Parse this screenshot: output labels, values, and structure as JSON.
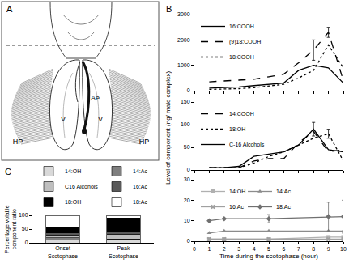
{
  "diagram": {
    "panel_label": "A",
    "labels": {
      "left_hair_pencil": "HP",
      "left_valva": "V",
      "aedeagus": "Ae",
      "right_valva": "V",
      "right_hair_pencil": "HP"
    }
  },
  "chart_data": [
    {
      "type": "line",
      "title": "B",
      "xlim": [
        0,
        10
      ],
      "xticks": [
        0,
        1,
        2,
        3,
        4,
        5,
        6,
        7,
        8,
        9,
        10
      ],
      "ylim": [
        0,
        3000
      ],
      "yticks": [
        0,
        1000,
        2000,
        3000
      ],
      "tick_labels": "y",
      "series": [
        {
          "name": "16:COOH",
          "color": "#000000",
          "line_style": "solid",
          "x": [
            1,
            2,
            3,
            4,
            5,
            6,
            7,
            8,
            9,
            10
          ],
          "values": [
            100,
            120,
            150,
            200,
            250,
            300,
            800,
            1000,
            900,
            300
          ]
        },
        {
          "name": "(9)18:COOH",
          "color": "#000000",
          "line_style": "dash",
          "x": [
            1,
            2,
            3,
            4,
            5,
            6,
            7,
            8,
            9,
            10
          ],
          "values": [
            350,
            380,
            400,
            450,
            550,
            650,
            1100,
            1600,
            2300,
            400
          ],
          "errors": [
            null,
            null,
            null,
            null,
            null,
            null,
            null,
            400,
            200,
            null
          ]
        },
        {
          "name": "18:COOH",
          "color": "#000000",
          "line_style": "dot",
          "x": [
            1,
            2,
            3,
            4,
            5,
            6,
            7,
            8,
            9,
            10
          ],
          "values": [
            50,
            60,
            80,
            120,
            180,
            250,
            500,
            800,
            1800,
            900
          ]
        }
      ]
    },
    {
      "type": "line",
      "ylabel": "Level of component (ng/ male complex)",
      "xlim": [
        0,
        10
      ],
      "xticks": [
        0,
        1,
        2,
        3,
        4,
        5,
        6,
        7,
        8,
        9,
        10
      ],
      "ylim": [
        0,
        150
      ],
      "yticks": [
        0,
        50,
        100,
        150
      ],
      "tick_labels": "y",
      "series": [
        {
          "name": "14:COOH",
          "color": "#000000",
          "line_style": "dash",
          "x": [
            1,
            2,
            3,
            4,
            5,
            6,
            7,
            8,
            9,
            10
          ],
          "values": [
            5,
            5,
            5,
            20,
            25,
            25,
            60,
            85,
            40,
            45
          ]
        },
        {
          "name": "18:OH",
          "color": "#000000",
          "line_style": "dot",
          "x": [
            1,
            2,
            3,
            4,
            5,
            6,
            7,
            8,
            9,
            10
          ],
          "values": [
            5,
            5,
            5,
            15,
            30,
            40,
            55,
            70,
            80,
            20
          ],
          "errors": [
            null,
            null,
            null,
            null,
            null,
            null,
            null,
            null,
            10,
            null
          ]
        },
        {
          "name": "C-16 Alcohols",
          "color": "#000000",
          "line_style": "solid",
          "x": [
            1,
            2,
            3,
            4,
            5,
            6,
            7,
            8,
            9,
            10
          ],
          "values": [
            5,
            5,
            8,
            30,
            35,
            40,
            55,
            90,
            45,
            40
          ],
          "errors": [
            null,
            null,
            null,
            null,
            null,
            null,
            null,
            15,
            null,
            null
          ]
        }
      ]
    },
    {
      "type": "line",
      "xlabel": "Time during the scotophase (hour)",
      "xlim": [
        0,
        10
      ],
      "xticks": [
        0,
        1,
        2,
        3,
        4,
        5,
        6,
        7,
        8,
        9,
        10
      ],
      "ylim": [
        0,
        30
      ],
      "yticks": [
        0,
        10,
        20,
        30
      ],
      "series": [
        {
          "name": "14:OH",
          "color": "#b0b0b0",
          "line_style": "solid",
          "marker": "square",
          "x": [
            1,
            2,
            5,
            9,
            10
          ],
          "values": [
            1,
            1,
            1,
            2,
            2
          ]
        },
        {
          "name": "14:Ac",
          "color": "#8c8c8c",
          "line_style": "solid",
          "marker": "triangle",
          "x": [
            1,
            2,
            5,
            9,
            10
          ],
          "values": [
            4,
            5,
            5,
            5,
            5
          ]
        },
        {
          "name": "16:Ac",
          "color": "#a0a0a0",
          "line_style": "solid",
          "marker": "x",
          "x": [
            1,
            2,
            5,
            9,
            10
          ],
          "values": [
            1,
            1,
            1,
            1,
            1
          ]
        },
        {
          "name": "18:Ac",
          "color": "#707070",
          "line_style": "solid",
          "marker": "diamond",
          "x": [
            1,
            2,
            5,
            9,
            10
          ],
          "values": [
            10,
            11,
            11,
            12,
            12
          ],
          "errors": [
            null,
            null,
            2,
            7,
            8
          ]
        }
      ]
    },
    {
      "type": "bar",
      "title": "C",
      "stacked": true,
      "ylabel": "Percentage volatile component ratio",
      "categories": [
        "Onset Scotophase",
        "Peak Scotophase"
      ],
      "ylim": [
        0,
        100
      ],
      "yticks": [
        0,
        50,
        100
      ],
      "series": [
        {
          "name": "14:OH",
          "color": "#d9d9d9",
          "values": [
            10,
            10
          ]
        },
        {
          "name": "14:Ac",
          "color": "#7f7f7f",
          "values": [
            8,
            4
          ]
        },
        {
          "name": "C16 Alcohols",
          "color": "#bfbfbf",
          "values": [
            10,
            18
          ]
        },
        {
          "name": "16:Ac",
          "color": "#595959",
          "values": [
            8,
            8
          ]
        },
        {
          "name": "18:OH",
          "color": "#000000",
          "values": [
            20,
            50
          ]
        },
        {
          "name": "18:Ac",
          "color": "#ffffff",
          "values": [
            44,
            10
          ]
        }
      ]
    }
  ]
}
